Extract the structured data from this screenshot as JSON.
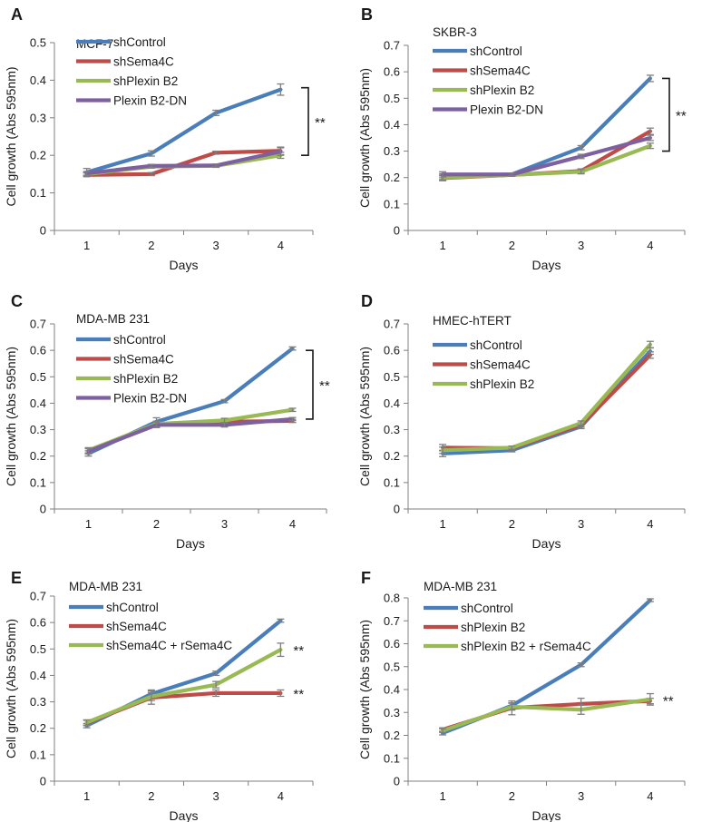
{
  "figure": {
    "colors": {
      "shControl": "#4a7ebb",
      "shSema4C": "#be4b48",
      "shPlexinB2": "#98b954",
      "PlexinB2DN": "#7d60a0",
      "axis": "#7f7f7f",
      "text": "#1a1a1a",
      "errorbar": "#7f7f7f"
    }
  },
  "chart_data": [
    {
      "type": "line",
      "panel_label": "A",
      "title": "MCF-7",
      "xlabel": "Days",
      "ylabel": "Cell growth (Abs 595nm)",
      "categories": [
        1,
        2,
        3,
        4
      ],
      "ylim": [
        0,
        0.5
      ],
      "yticks": [
        0,
        0.1,
        0.2,
        0.3,
        0.4,
        0.5
      ],
      "legend_position": "top-left",
      "series": [
        {
          "name": "shControl",
          "values": [
            0.155,
            0.205,
            0.313,
            0.375
          ],
          "errors": [
            0.01,
            0.007,
            0.007,
            0.015
          ]
        },
        {
          "name": "shSema4C",
          "values": [
            0.148,
            0.15,
            0.207,
            0.212
          ],
          "errors": [
            0.005,
            0.004,
            0.004,
            0.01
          ]
        },
        {
          "name": "shPlexin B2",
          "values": [
            0.15,
            0.17,
            0.172,
            0.2
          ],
          "errors": [
            0.005,
            0.004,
            0.004,
            0.008
          ]
        },
        {
          "name": "Plexin B2-DN",
          "values": [
            0.152,
            0.172,
            0.173,
            0.21
          ],
          "errors": [
            0.005,
            0.004,
            0.004,
            0.01
          ]
        }
      ],
      "annotations": [
        {
          "text": "**",
          "kind": "bracket",
          "from": 0.38,
          "to": 0.2
        }
      ]
    },
    {
      "type": "line",
      "panel_label": "B",
      "title": "SKBR-3",
      "xlabel": "Days",
      "ylabel": "Cell growth (Abs 595nm)",
      "categories": [
        1,
        2,
        3,
        4
      ],
      "ylim": [
        0,
        0.7
      ],
      "yticks": [
        0,
        0.1,
        0.2,
        0.3,
        0.4,
        0.5,
        0.6,
        0.7
      ],
      "legend_position": "top-left",
      "series": [
        {
          "name": "shControl",
          "values": [
            0.205,
            0.212,
            0.313,
            0.575
          ],
          "errors": [
            0.01,
            0.005,
            0.008,
            0.012
          ]
        },
        {
          "name": "shSema4C",
          "values": [
            0.198,
            0.21,
            0.225,
            0.375
          ],
          "errors": [
            0.01,
            0.005,
            0.008,
            0.012
          ]
        },
        {
          "name": "shPlexin B2",
          "values": [
            0.2,
            0.21,
            0.222,
            0.32
          ],
          "errors": [
            0.01,
            0.005,
            0.008,
            0.01
          ]
        },
        {
          "name": "Plexin B2-DN",
          "values": [
            0.212,
            0.212,
            0.28,
            0.35
          ],
          "errors": [
            0.01,
            0.005,
            0.008,
            0.01
          ]
        }
      ],
      "annotations": [
        {
          "text": "**",
          "kind": "bracket",
          "from": 0.575,
          "to": 0.3
        }
      ]
    },
    {
      "type": "line",
      "panel_label": "C",
      "title": "MDA-MB 231",
      "xlabel": "Days",
      "ylabel": "Cell growth (Abs 595nm)",
      "categories": [
        1,
        2,
        3,
        4
      ],
      "ylim": [
        0,
        0.7
      ],
      "yticks": [
        0,
        0.1,
        0.2,
        0.3,
        0.4,
        0.5,
        0.6,
        0.7
      ],
      "legend_position": "top-left",
      "series": [
        {
          "name": "shControl",
          "values": [
            0.21,
            0.33,
            0.408,
            0.607
          ],
          "errors": [
            0.01,
            0.015,
            0.006,
            0.006
          ]
        },
        {
          "name": "shSema4C",
          "values": [
            0.22,
            0.318,
            0.33,
            0.333
          ],
          "errors": [
            0.01,
            0.01,
            0.008,
            0.006
          ]
        },
        {
          "name": "shPlexin B2",
          "values": [
            0.222,
            0.322,
            0.335,
            0.375
          ],
          "errors": [
            0.01,
            0.01,
            0.008,
            0.006
          ]
        },
        {
          "name": "Plexin B2-DN",
          "values": [
            0.218,
            0.318,
            0.318,
            0.34
          ],
          "errors": [
            0.01,
            0.01,
            0.008,
            0.006
          ]
        }
      ],
      "annotations": [
        {
          "text": "**",
          "kind": "bracket",
          "from": 0.6,
          "to": 0.34
        }
      ]
    },
    {
      "type": "line",
      "panel_label": "D",
      "title": "HMEC-hTERT",
      "xlabel": "Days",
      "ylabel": "Cell growth (Abs 595nm)",
      "categories": [
        1,
        2,
        3,
        4
      ],
      "ylim": [
        0,
        0.7
      ],
      "yticks": [
        0,
        0.1,
        0.2,
        0.3,
        0.4,
        0.5,
        0.6,
        0.7
      ],
      "legend_position": "top-left",
      "series": [
        {
          "name": "shControl",
          "values": [
            0.21,
            0.222,
            0.312,
            0.597
          ],
          "errors": [
            0.012,
            0.006,
            0.008,
            0.012
          ]
        },
        {
          "name": "shSema4C",
          "values": [
            0.232,
            0.23,
            0.318,
            0.582
          ],
          "errors": [
            0.012,
            0.006,
            0.008,
            0.012
          ]
        },
        {
          "name": "shPlexin B2",
          "values": [
            0.222,
            0.232,
            0.325,
            0.622
          ],
          "errors": [
            0.012,
            0.006,
            0.008,
            0.012
          ]
        }
      ],
      "annotations": []
    },
    {
      "type": "line",
      "panel_label": "E",
      "title": "MDA-MB 231",
      "xlabel": "Days",
      "ylabel": "Cell growth (Abs 595nm)",
      "categories": [
        1,
        2,
        3,
        4
      ],
      "ylim": [
        0,
        0.7
      ],
      "yticks": [
        0,
        0.1,
        0.2,
        0.3,
        0.4,
        0.5,
        0.6,
        0.7
      ],
      "legend_position": "top-left",
      "series": [
        {
          "name": "shControl",
          "values": [
            0.21,
            0.33,
            0.408,
            0.607
          ],
          "errors": [
            0.008,
            0.015,
            0.008,
            0.006
          ]
        },
        {
          "name": "shSema4C",
          "values": [
            0.22,
            0.316,
            0.333,
            0.333
          ],
          "errors": [
            0.01,
            0.025,
            0.012,
            0.012
          ]
        },
        {
          "name": "shSema4C + rSema4C",
          "values": [
            0.222,
            0.32,
            0.365,
            0.497
          ],
          "errors": [
            0.01,
            0.015,
            0.012,
            0.025
          ]
        }
      ],
      "annotations": [
        {
          "text": "**",
          "kind": "point",
          "at": 0.497
        },
        {
          "text": "**",
          "kind": "point",
          "at": 0.333
        }
      ]
    },
    {
      "type": "line",
      "panel_label": "F",
      "title": "MDA-MB 231",
      "xlabel": "Days",
      "ylabel": "Cell growth (Abs 595nm)",
      "categories": [
        1,
        2,
        3,
        4
      ],
      "ylim": [
        0,
        0.8
      ],
      "yticks": [
        0,
        0.1,
        0.2,
        0.3,
        0.4,
        0.5,
        0.6,
        0.7,
        0.8
      ],
      "legend_position": "top-left",
      "series": [
        {
          "name": "shControl",
          "values": [
            0.21,
            0.33,
            0.508,
            0.79
          ],
          "errors": [
            0.008,
            0.012,
            0.008,
            0.006
          ]
        },
        {
          "name": "shPlexin B2",
          "values": [
            0.225,
            0.32,
            0.337,
            0.35
          ],
          "errors": [
            0.008,
            0.03,
            0.025,
            0.012
          ]
        },
        {
          "name": "shPlexin B2 + rSema4C",
          "values": [
            0.22,
            0.325,
            0.312,
            0.357
          ],
          "errors": [
            0.008,
            0.015,
            0.02,
            0.025
          ]
        }
      ],
      "annotations": [
        {
          "text": "**",
          "kind": "point",
          "at": 0.355
        }
      ]
    }
  ]
}
